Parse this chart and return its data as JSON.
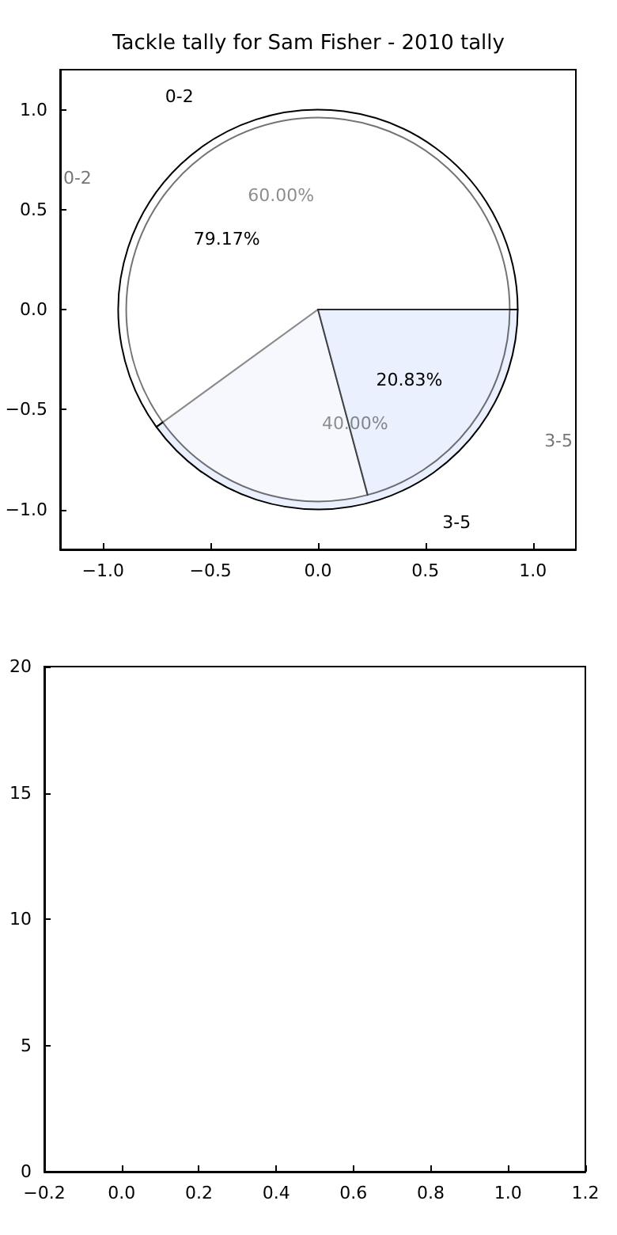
{
  "chart_data": [
    {
      "type": "scatter",
      "title": "Tackle tally for Sam Fisher - 2010 tally",
      "xlim": [
        -1.2,
        1.2
      ],
      "xticks": [
        {
          "value": -1,
          "label": "−1.0"
        },
        {
          "value": -0.5,
          "label": "−0.5"
        },
        {
          "value": 0,
          "label": "0.0"
        },
        {
          "value": 0.5,
          "label": "0.5"
        },
        {
          "value": 1,
          "label": "1.0"
        }
      ],
      "ylim": [
        -1.2,
        1.2
      ],
      "yticks": [
        {
          "value": -1,
          "label": "−1.0"
        },
        {
          "value": -0.5,
          "label": "−0.5"
        },
        {
          "value": 0,
          "label": "0.0"
        },
        {
          "value": 0.5,
          "label": "0.5"
        },
        {
          "value": 1,
          "label": "1.0"
        }
      ]
    },
    {
      "type": "pie",
      "categories": [
        "0-2",
        "3-5"
      ],
      "values": [
        60,
        40
      ],
      "colors": [
        "#ffffff",
        "#eaf0fd"
      ],
      "value_labels": [
        "60.00%",
        "40.00%"
      ]
    },
    {
      "type": "pie",
      "categories": [
        "0-2",
        "3-5"
      ],
      "values": [
        79.17,
        20.83
      ],
      "colors": [
        "#ffffff",
        "#eaf0fd"
      ],
      "value_labels": [
        "79.17%",
        "20.83%"
      ]
    },
    {
      "type": "scatter",
      "xlim": [
        -0.2,
        1.2
      ],
      "xticks": [
        {
          "value": -0.2,
          "label": "−0.2"
        },
        {
          "value": 0,
          "label": "0.0"
        },
        {
          "value": 0.2,
          "label": "0.2"
        },
        {
          "value": 0.4,
          "label": "0.4"
        },
        {
          "value": 0.6,
          "label": "0.6"
        },
        {
          "value": 0.8,
          "label": "0.8"
        },
        {
          "value": 1,
          "label": "1.0"
        },
        {
          "value": 1.2,
          "label": "1.2"
        }
      ],
      "ylim": [
        0,
        20
      ],
      "yticks": [
        0,
        5,
        10,
        15,
        20
      ]
    }
  ]
}
